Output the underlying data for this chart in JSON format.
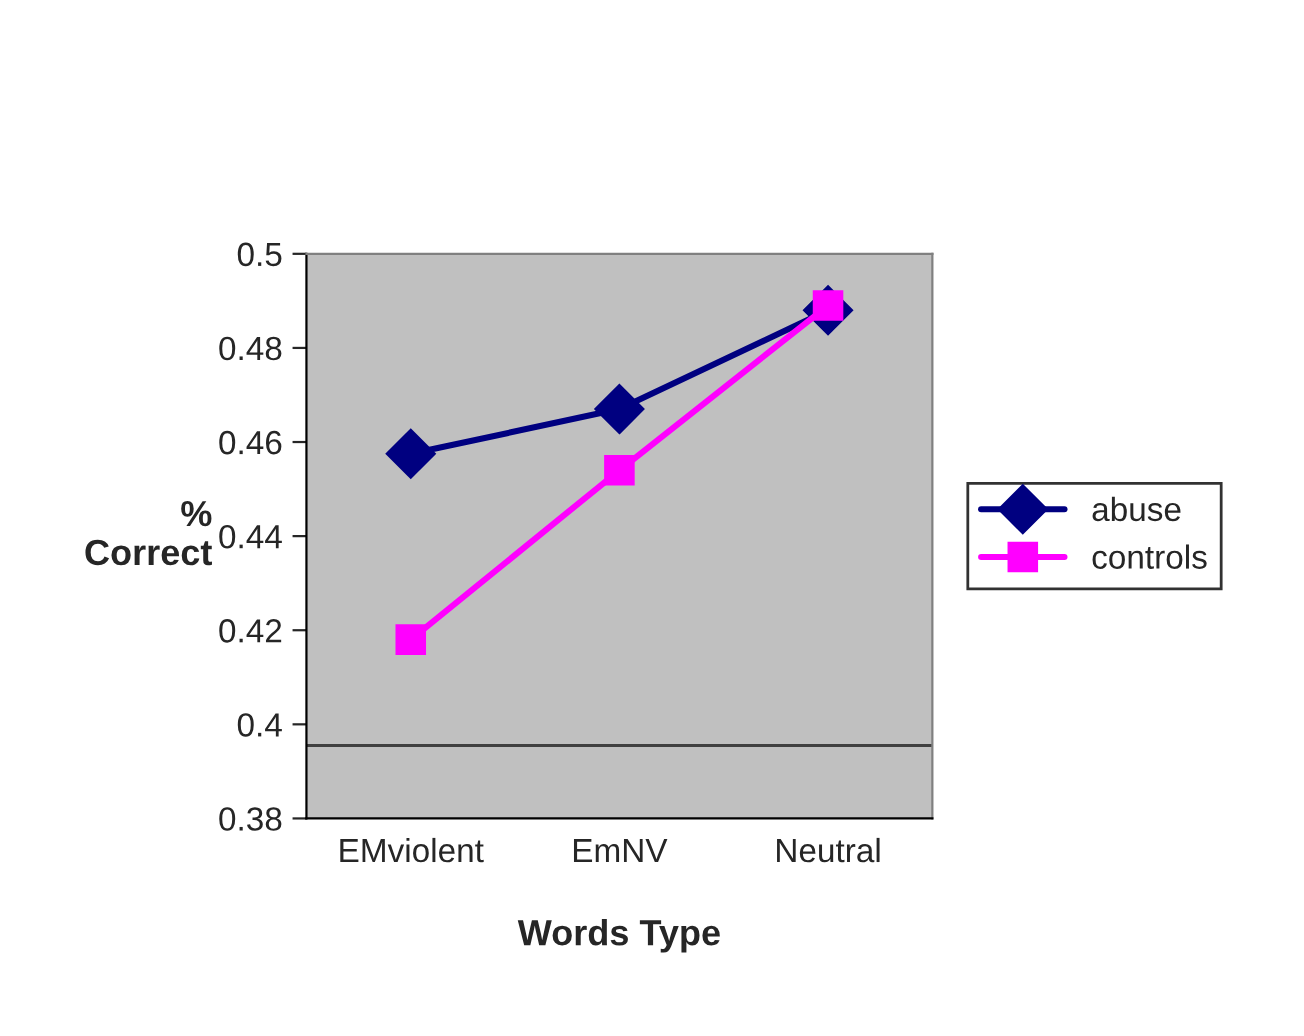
{
  "chart_data": {
    "type": "line",
    "xlabel": "Words Type",
    "ylabel": "%\nCorrect",
    "categories": [
      "EMviolent",
      "EmNV",
      "Neutral"
    ],
    "series": [
      {
        "name": "abuse",
        "color": "#000080",
        "marker": "diamond",
        "values": [
          0.4575,
          0.467,
          0.488
        ]
      },
      {
        "name": "controls",
        "color": "#ff00ff",
        "marker": "square",
        "values": [
          0.418,
          0.454,
          0.489
        ]
      }
    ],
    "ylim": [
      0.38,
      0.5
    ],
    "yticks": [
      0.38,
      0.4,
      0.42,
      0.44,
      0.46,
      0.48,
      0.5
    ],
    "ref_lines": [
      {
        "axis": "y",
        "value": 0.3955,
        "color": "#404040"
      }
    ],
    "grid": false,
    "legend": "right",
    "line_style": "solid"
  }
}
